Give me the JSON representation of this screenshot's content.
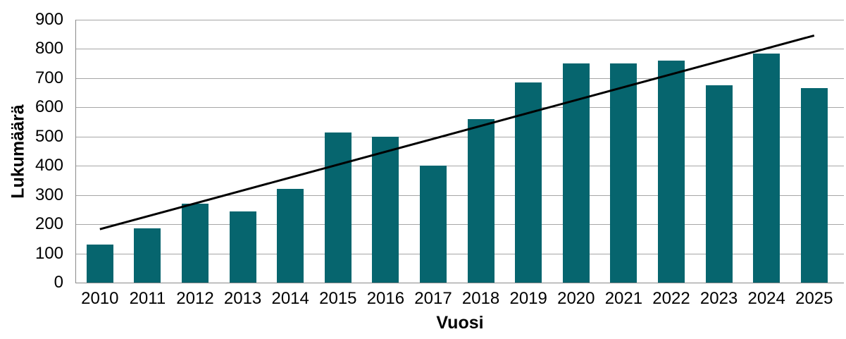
{
  "chart_data": {
    "type": "bar",
    "xlabel": "Vuosi",
    "ylabel": "Lukumäärä",
    "categories": [
      "2010",
      "2011",
      "2012",
      "2013",
      "2014",
      "2015",
      "2016",
      "2017",
      "2018",
      "2019",
      "2020",
      "2021",
      "2022",
      "2023",
      "2024",
      "2025"
    ],
    "values": [
      130,
      185,
      270,
      245,
      320,
      515,
      500,
      400,
      560,
      685,
      750,
      750,
      760,
      675,
      785,
      665
    ],
    "ylim": [
      0,
      900
    ],
    "ytick_step": 100,
    "yticks": [
      0,
      100,
      200,
      300,
      400,
      500,
      600,
      700,
      800,
      900
    ],
    "grid": "horizontal",
    "legend": "none",
    "trendline": {
      "type": "linear",
      "y_start": 183,
      "y_end": 846
    },
    "colors": {
      "bar": "#06656e",
      "trendline": "#000000",
      "gridline": "#a6a6a6",
      "axis": "#898989",
      "text": "#000000",
      "background": "#ffffff"
    }
  }
}
